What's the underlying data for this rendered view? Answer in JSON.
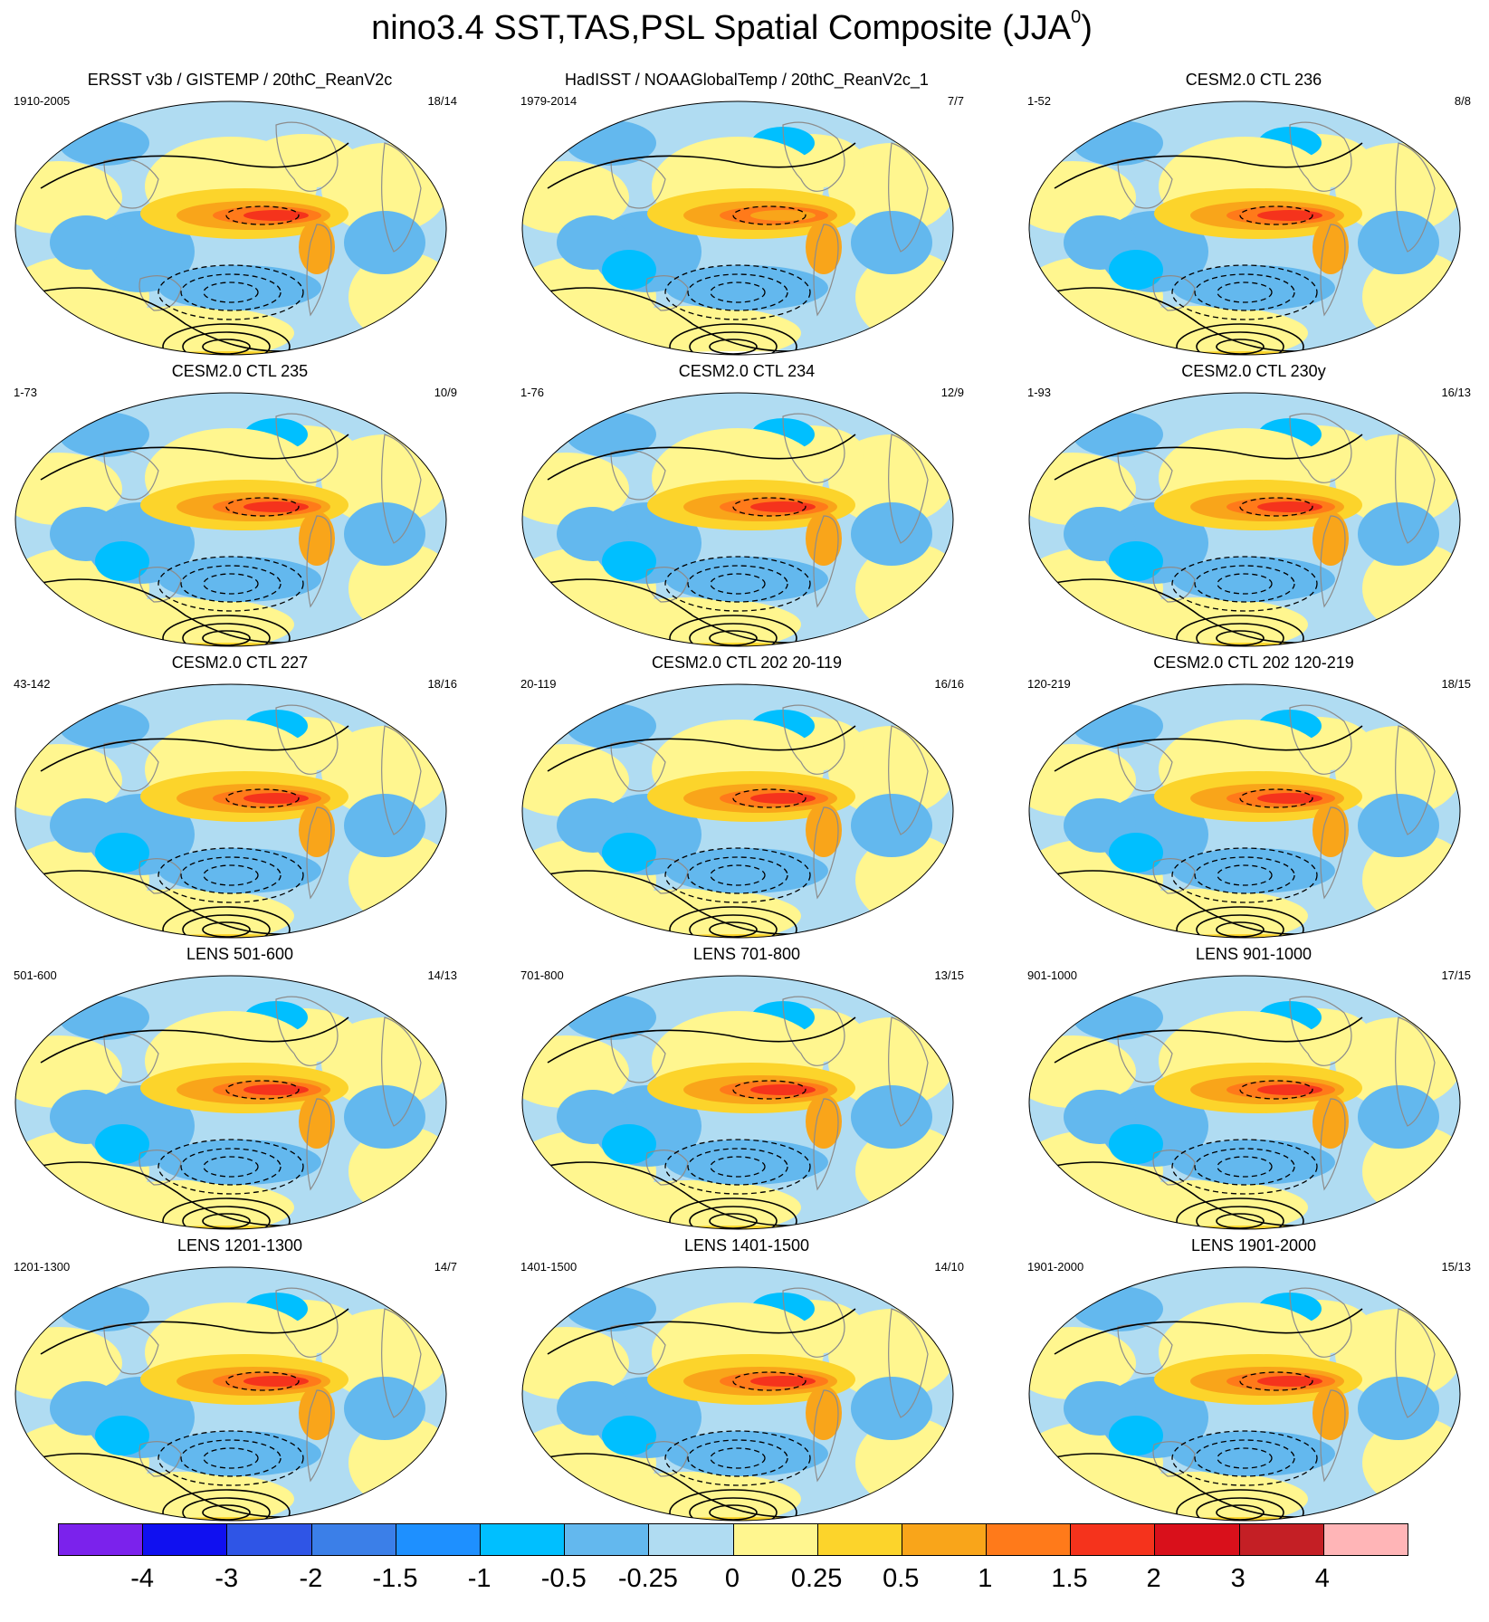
{
  "title": "nino3.4 SST,TAS,PSL Spatial Composite (JJA",
  "title_sup": "0",
  "title_end": ")",
  "panels": [
    {
      "title": "ERSST v3b / GISTEMP / 20thC_ReanV2c",
      "years": "1910-2005",
      "ratio": "18/14",
      "variant": "obs"
    },
    {
      "title": "HadISST / NOAAGlobalTemp / 20thC_ReanV2c_1",
      "years": "1979-2014",
      "ratio": "7/7",
      "variant": "obs2"
    },
    {
      "title": "CESM2.0 CTL 236",
      "years": "1-52",
      "ratio": "8/8",
      "variant": "model"
    },
    {
      "title": "CESM2.0 CTL 235",
      "years": "1-73",
      "ratio": "10/9",
      "variant": "model"
    },
    {
      "title": "CESM2.0 CTL 234",
      "years": "1-76",
      "ratio": "12/9",
      "variant": "model"
    },
    {
      "title": "CESM2.0 CTL 230y",
      "years": "1-93",
      "ratio": "16/13",
      "variant": "model"
    },
    {
      "title": "CESM2.0 CTL 227",
      "years": "43-142",
      "ratio": "18/16",
      "variant": "model"
    },
    {
      "title": "CESM2.0 CTL 202 20-119",
      "years": "20-119",
      "ratio": "16/16",
      "variant": "model"
    },
    {
      "title": "CESM2.0 CTL 202 120-219",
      "years": "120-219",
      "ratio": "18/15",
      "variant": "model"
    },
    {
      "title": "LENS 501-600",
      "years": "501-600",
      "ratio": "14/13",
      "variant": "lens"
    },
    {
      "title": "LENS 701-800",
      "years": "701-800",
      "ratio": "13/15",
      "variant": "lens"
    },
    {
      "title": "LENS 901-1000",
      "years": "901-1000",
      "ratio": "17/15",
      "variant": "lens"
    },
    {
      "title": "LENS 1201-1300",
      "years": "1201-1300",
      "ratio": "14/7",
      "variant": "lens"
    },
    {
      "title": "LENS 1401-1500",
      "years": "1401-1500",
      "ratio": "14/10",
      "variant": "lens"
    },
    {
      "title": "LENS 1901-2000",
      "years": "1901-2000",
      "ratio": "15/13",
      "variant": "lens"
    }
  ],
  "colorbar": {
    "colors": [
      "#7b22ec",
      "#1010f0",
      "#2f55e6",
      "#3b7fe8",
      "#1e90ff",
      "#00bfff",
      "#63b8ee",
      "#b0dcf2",
      "#fff68f",
      "#fcd42b",
      "#f9a51a",
      "#ff7a1a",
      "#f5331c",
      "#d9101b",
      "#c41f25",
      "#ffb5b7"
    ],
    "labels": [
      "-4",
      "-3",
      "-2",
      "-1.5",
      "-1",
      "-0.5",
      "-0.25",
      "0",
      "0.25",
      "0.5",
      "1",
      "1.5",
      "2",
      "3",
      "4"
    ]
  }
}
